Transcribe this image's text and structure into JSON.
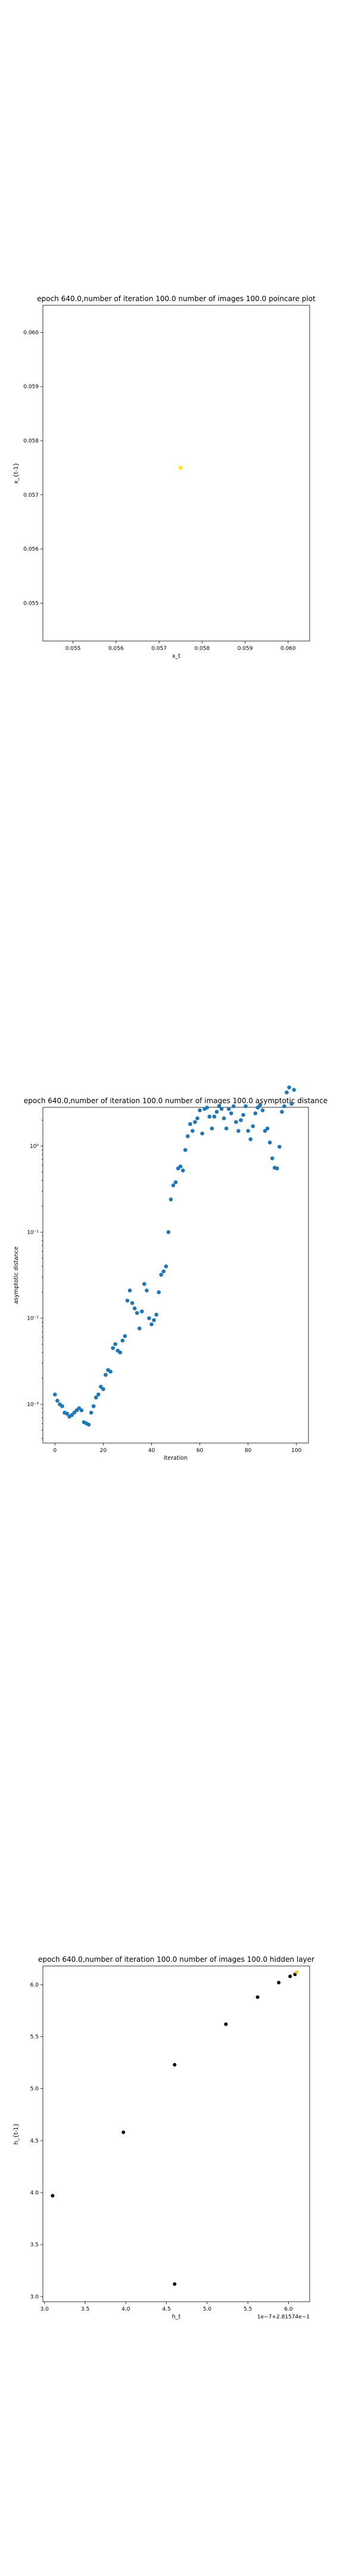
{
  "chart_data": [
    {
      "type": "scatter",
      "title": "epoch 640.0,number of iteration 100.0 number of images 100.0 poincare plot",
      "xlabel": "x_t",
      "ylabel": "x_{t-1}",
      "xlim": [
        0.0543,
        0.0605
      ],
      "ylim": [
        0.0543,
        0.0605
      ],
      "xticks": [
        "0.055",
        "0.056",
        "0.057",
        "0.058",
        "0.059",
        "0.060"
      ],
      "xtick_values": [
        0.055,
        0.056,
        0.057,
        0.058,
        0.059,
        0.06
      ],
      "yticks": [
        "0.055",
        "0.056",
        "0.057",
        "0.058",
        "0.059",
        "0.060"
      ],
      "ytick_values": [
        0.055,
        0.056,
        0.057,
        0.058,
        0.059,
        0.06
      ],
      "points": [
        {
          "x": 0.0575,
          "y": 0.0575
        }
      ],
      "point_color": "#fde725",
      "grid": false
    },
    {
      "type": "scatter",
      "title": "epoch 640.0,number of iteration 100.0  number of images 100.0 asymptotic distance",
      "xlabel": "iteration",
      "ylabel": "asymptotic distance",
      "xlim": [
        -5,
        105
      ],
      "ylim_log10": [
        -3.45,
        0.45
      ],
      "xticks": [
        "0",
        "20",
        "40",
        "60",
        "80",
        "100"
      ],
      "xtick_values": [
        0,
        20,
        40,
        60,
        80,
        100
      ],
      "yticks": [
        "10⁻³",
        "10⁻²",
        "10⁻¹",
        "10⁰"
      ],
      "ytick_values": [
        0.001,
        0.01,
        0.1,
        1
      ],
      "y_scale": "log",
      "point_color": "#1f77b4",
      "grid": false,
      "x": [
        0,
        1,
        2,
        3,
        4,
        5,
        6,
        7,
        8,
        9,
        10,
        11,
        12,
        13,
        14,
        15,
        16,
        17,
        18,
        19,
        20,
        21,
        22,
        23,
        24,
        25,
        26,
        27,
        28,
        29,
        30,
        31,
        32,
        33,
        34,
        35,
        36,
        37,
        38,
        39,
        40,
        41,
        42,
        43,
        44,
        45,
        46,
        47,
        48,
        49,
        50,
        51,
        52,
        53,
        54,
        55,
        56,
        57,
        58,
        59,
        60,
        61,
        62,
        63,
        64,
        65,
        66,
        67,
        68,
        69,
        70,
        71,
        72,
        73,
        74,
        75,
        76,
        77,
        78,
        79,
        80,
        81,
        82,
        83,
        84,
        85,
        86,
        87,
        88,
        89,
        90,
        91,
        92,
        93,
        94,
        95,
        96,
        97,
        98,
        99
      ],
      "y": [
        0.0013,
        0.0011,
        0.001,
        0.00095,
        0.0008,
        0.00078,
        0.00072,
        0.00075,
        0.0008,
        0.00085,
        0.0009,
        0.00085,
        0.00062,
        0.0006,
        0.00058,
        0.0008,
        0.00095,
        0.0012,
        0.0013,
        0.0016,
        0.0015,
        0.0022,
        0.0025,
        0.0024,
        0.0045,
        0.005,
        0.0042,
        0.004,
        0.0055,
        0.0062,
        0.016,
        0.021,
        0.015,
        0.013,
        0.0115,
        0.0076,
        0.012,
        0.025,
        0.021,
        0.01,
        0.0085,
        0.0095,
        0.011,
        0.02,
        0.032,
        0.035,
        0.04,
        0.1,
        0.24,
        0.35,
        0.38,
        0.55,
        0.58,
        0.52,
        0.9,
        1.3,
        1.8,
        1.5,
        1.9,
        2.1,
        2.6,
        1.4,
        2.7,
        2.8,
        2.2,
        1.6,
        2.2,
        2.5,
        2.9,
        2.7,
        2.1,
        1.6,
        2.7,
        2.4,
        2.9,
        1.9,
        1.5,
        2.0,
        2.3,
        2.9,
        1.5,
        1.2,
        1.7,
        2.4,
        2.8,
        3.0,
        2.6,
        1.5,
        1.6,
        1.1,
        0.72,
        0.56,
        0.55,
        0.98,
        2.5,
        2.9,
        4.2,
        4.8,
        3.1,
        4.5
      ]
    },
    {
      "type": "scatter",
      "title": "epoch 640.0,number of iteration 100.0  number of images 100.0 hidden layer",
      "xlabel": "h_t",
      "ylabel": "h_{t-1}",
      "x_offset_label": "1e−7+2.81574e−1",
      "xlim": [
        2.98,
        6.26
      ],
      "ylim": [
        2.95,
        6.18
      ],
      "xticks": [
        "3.0",
        "3.5",
        "4.0",
        "4.5",
        "5.0",
        "5.5",
        "6.0"
      ],
      "xtick_values": [
        3.0,
        3.5,
        4.0,
        4.5,
        5.0,
        5.5,
        6.0
      ],
      "yticks": [
        "3.0",
        "3.5",
        "4.0",
        "4.5",
        "5.0",
        "5.5",
        "6.0"
      ],
      "ytick_values": [
        3.0,
        3.5,
        4.0,
        4.5,
        5.0,
        5.5,
        6.0
      ],
      "points": [
        {
          "x": 3.1,
          "y": 3.97,
          "color": "#000000"
        },
        {
          "x": 3.97,
          "y": 4.58,
          "color": "#000000"
        },
        {
          "x": 4.6,
          "y": 5.23,
          "color": "#000000"
        },
        {
          "x": 4.6,
          "y": 3.12,
          "color": "#000000"
        },
        {
          "x": 5.23,
          "y": 5.62,
          "color": "#000000"
        },
        {
          "x": 5.62,
          "y": 5.88,
          "color": "#000000"
        },
        {
          "x": 5.88,
          "y": 6.02,
          "color": "#000000"
        },
        {
          "x": 6.02,
          "y": 6.08,
          "color": "#000000"
        },
        {
          "x": 6.08,
          "y": 6.1,
          "color": "#000000"
        },
        {
          "x": 6.1,
          "y": 6.12,
          "color": "#e8c630"
        }
      ],
      "grid": false
    }
  ]
}
